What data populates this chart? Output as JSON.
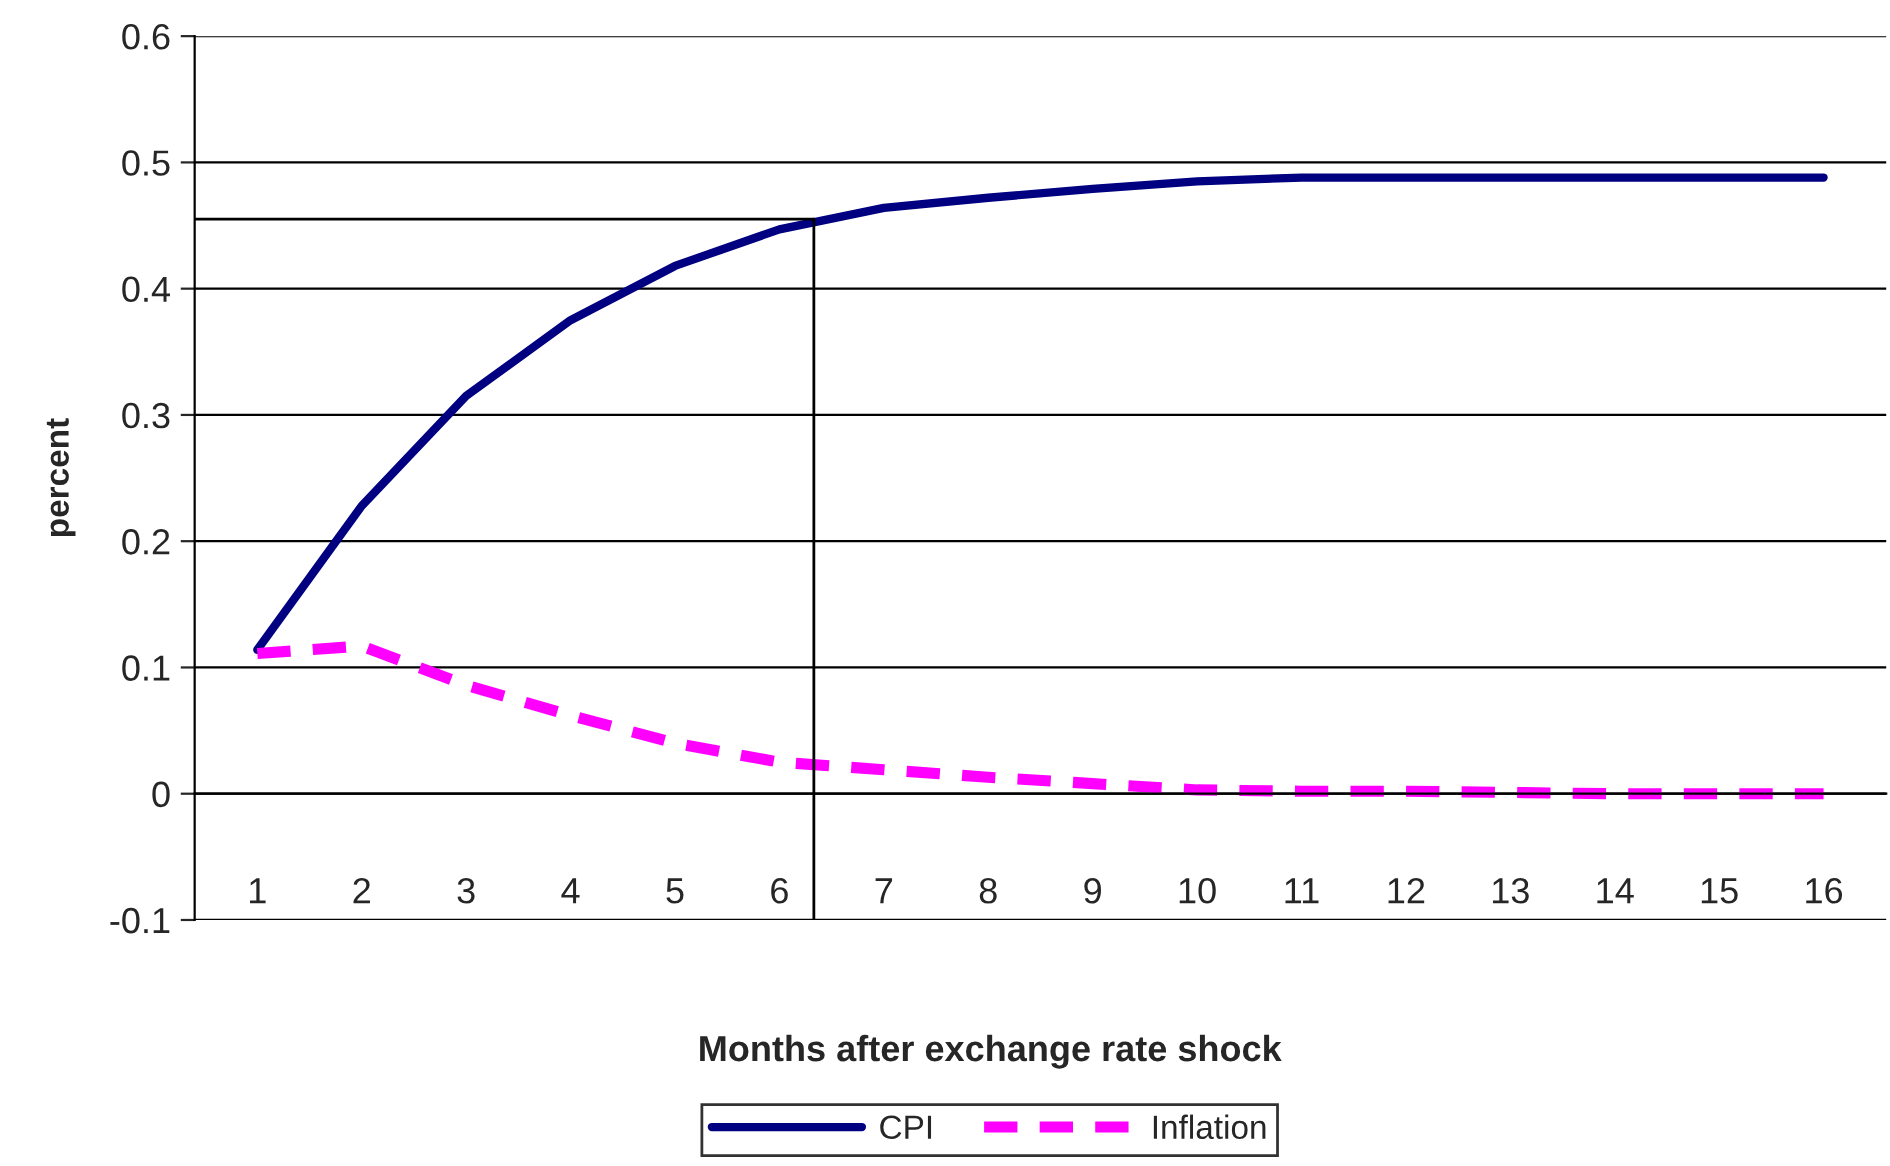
{
  "chart_data": {
    "type": "line",
    "xlabel": "Months after exchange rate shock",
    "ylabel": "percent",
    "x": [
      1,
      2,
      3,
      4,
      5,
      6,
      7,
      8,
      9,
      10,
      11,
      12,
      13,
      14,
      15,
      16
    ],
    "xlim": [
      0.4,
      16.6
    ],
    "xticks": [
      1,
      2,
      3,
      4,
      5,
      6,
      7,
      8,
      9,
      10,
      11,
      12,
      13,
      14,
      15,
      16
    ],
    "ylim": [
      -0.1,
      0.6
    ],
    "yticks": [
      -0.1,
      0,
      0.1,
      0.2,
      0.3,
      0.4,
      0.5,
      0.6
    ],
    "grid": "y",
    "legend": "bottom",
    "marker": "none",
    "series": [
      {
        "name": "CPI",
        "color": "#000080",
        "line_style": "solid",
        "values": [
          0.114,
          0.228,
          0.315,
          0.375,
          0.418,
          0.447,
          0.464,
          0.472,
          0.479,
          0.485,
          0.488,
          0.488,
          0.488,
          0.488,
          0.488,
          0.488
        ]
      },
      {
        "name": "Inflation",
        "color": "#ff00ff",
        "line_style": "dashed",
        "values": [
          0.111,
          0.117,
          0.086,
          0.062,
          0.04,
          0.025,
          0.019,
          0.013,
          0.008,
          0.003,
          0.002,
          0.002,
          0.001,
          0,
          0,
          0
        ]
      }
    ],
    "ref_lines": [
      {
        "axis": "y",
        "value": 0.455,
        "color": "#000000"
      },
      {
        "axis": "x",
        "value": 6.33,
        "color": "#000000"
      }
    ]
  }
}
